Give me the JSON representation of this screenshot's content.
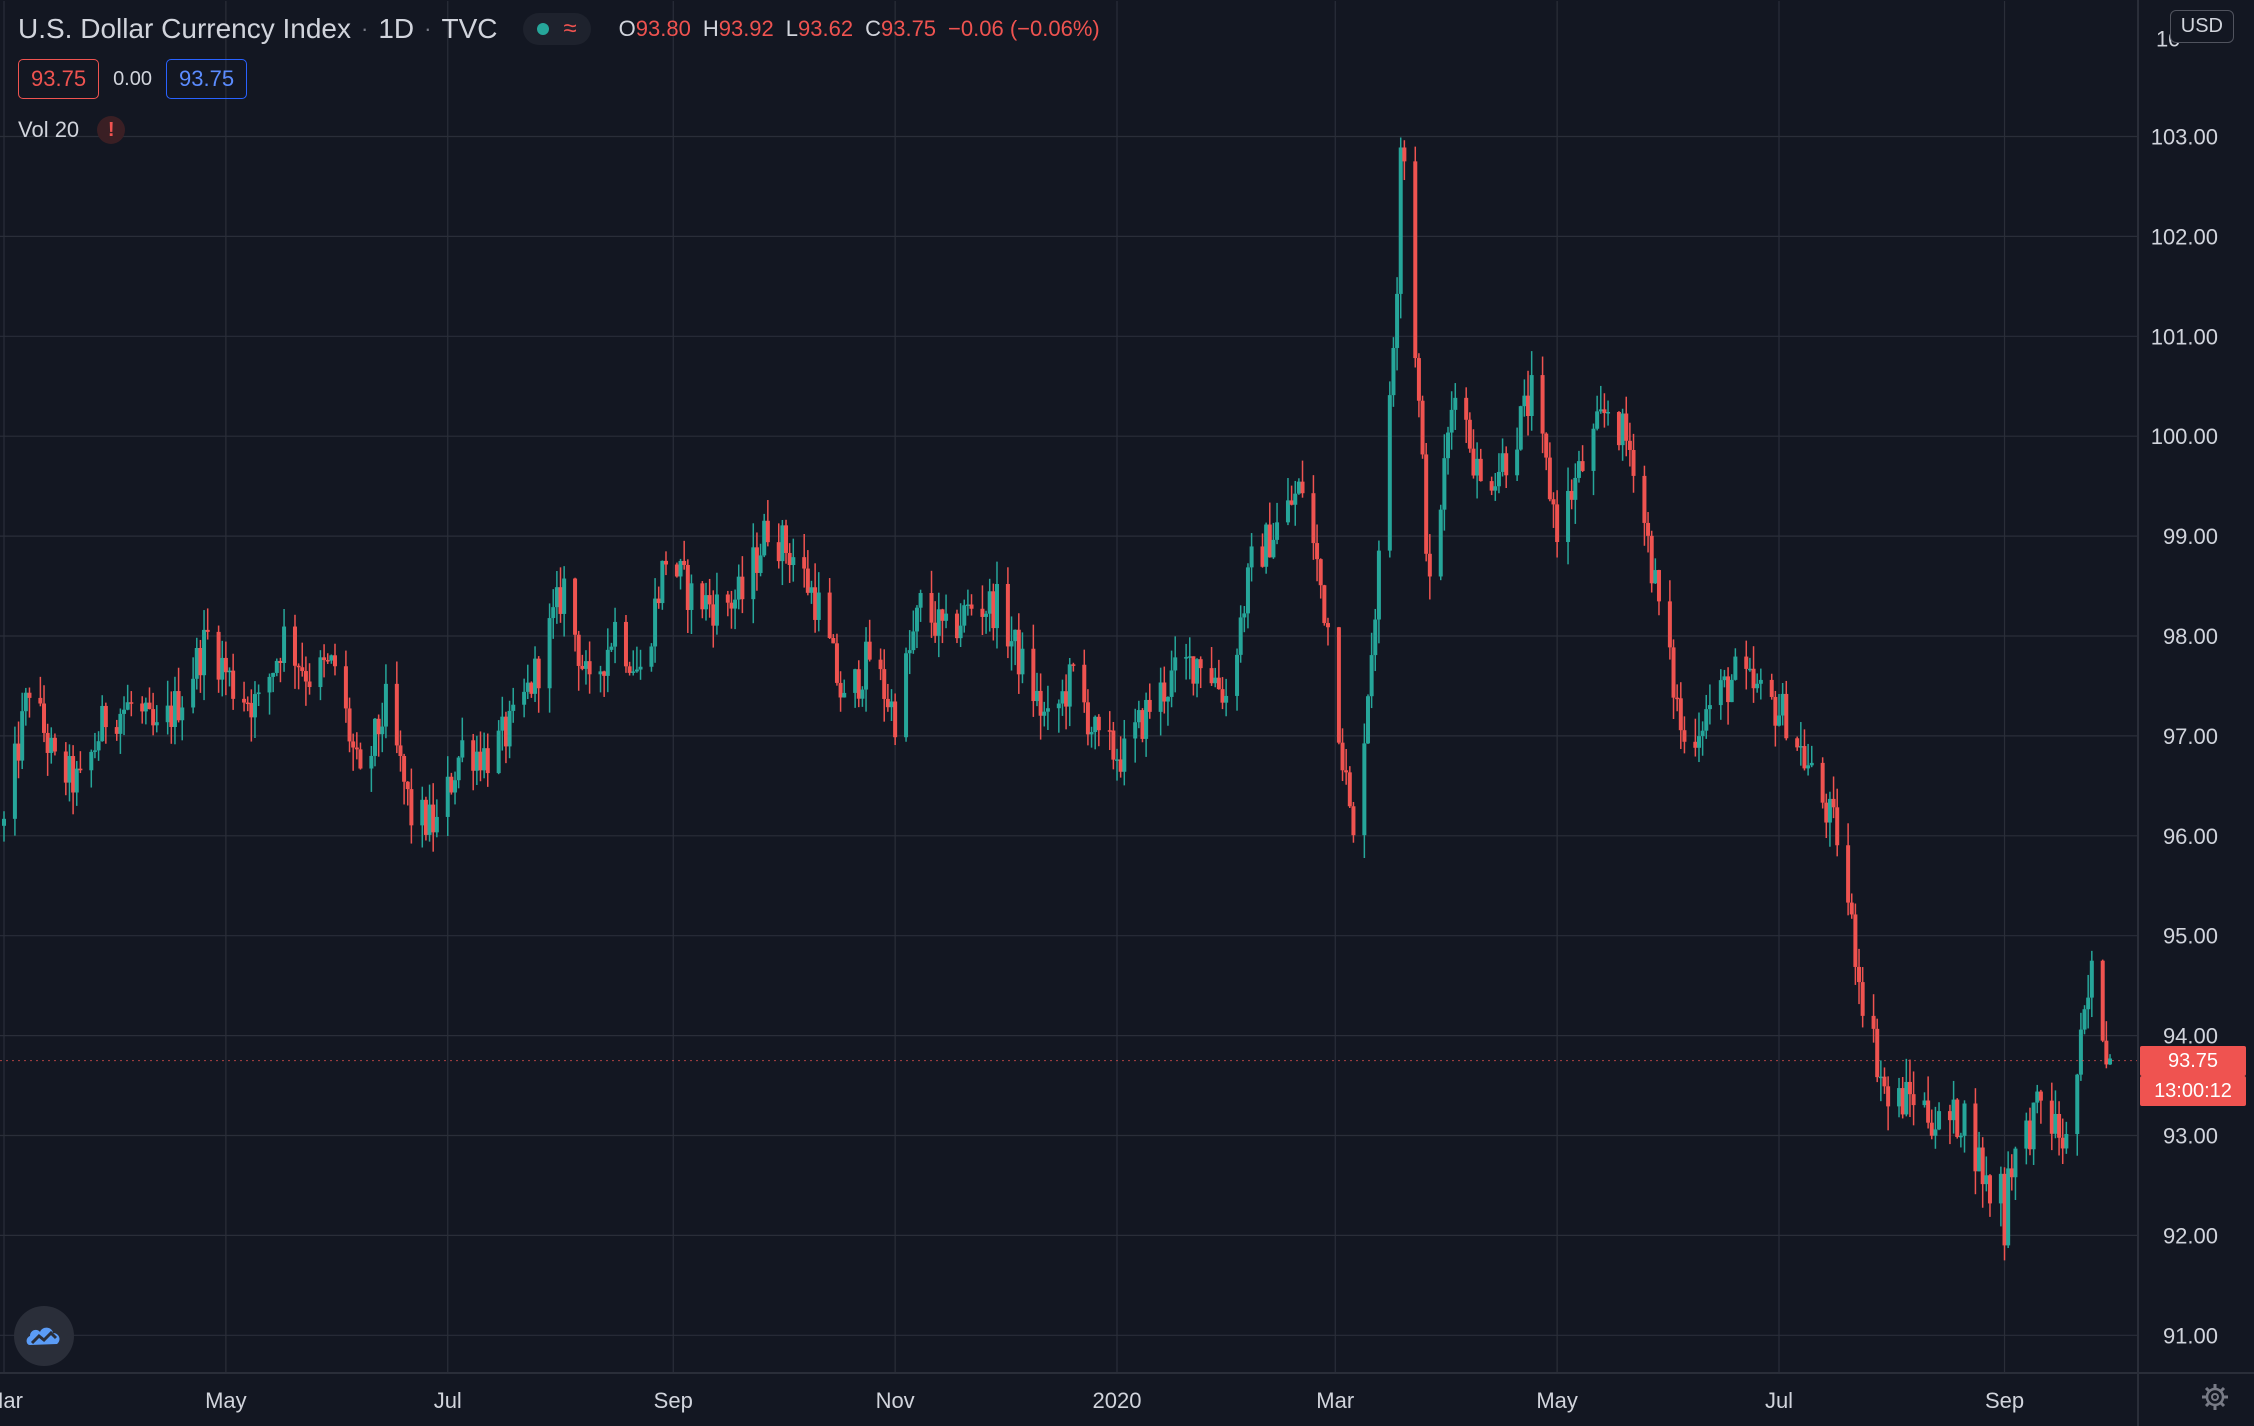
{
  "header": {
    "symbol_title": "U.S. Dollar Currency Index",
    "interval": "1D",
    "exchange": "TVC",
    "ohlc": {
      "o_label": "O",
      "o_value": "93.80",
      "h_label": "H",
      "h_value": "93.92",
      "l_label": "L",
      "l_value": "93.62",
      "c_label": "C",
      "c_value": "93.75",
      "change": "−0.06 (−0.06%)"
    },
    "sell_price": "93.75",
    "spread": "0.00",
    "buy_price": "93.75",
    "volume_indicator": "Vol 20",
    "warning_glyph": "!"
  },
  "currency_button": "USD",
  "price_tags": {
    "last_price": "93.75",
    "countdown": "13:00:12"
  },
  "colors": {
    "background": "#131722",
    "up": "#26a69a",
    "down": "#ef5350",
    "grid": "#2a2e39",
    "text": "#d1d4dc"
  },
  "icons": [
    "tradingview-logo-icon",
    "settings-gear-icon",
    "warning-icon",
    "status-wave-icon"
  ],
  "chart_data": {
    "type": "candlestick",
    "title": "U.S. Dollar Currency Index",
    "ylim": [
      90.6,
      104.3
    ],
    "y_ticks": [
      "91.00",
      "92.00",
      "93.00",
      "94.00",
      "95.00",
      "96.00",
      "97.00",
      "98.00",
      "99.00",
      "100.00",
      "101.00",
      "102.00",
      "103.00"
    ],
    "y_tick_top_partial": "10",
    "x_tick_labels": [
      "Mar",
      "May",
      "Jul",
      "Sep",
      "Nov",
      "2020",
      "Mar",
      "May",
      "Jul",
      "Sep"
    ],
    "x_tick_dates": [
      "2019-03-01",
      "2019-05-01",
      "2019-07-01",
      "2019-09-01",
      "2019-11-01",
      "2020-01-01",
      "2020-03-01",
      "2020-05-01",
      "2020-07-01",
      "2020-09-01"
    ],
    "x_range": [
      "2019-03-01",
      "2020-09-30"
    ],
    "grid": true,
    "last_price": 93.75,
    "close_series": [
      [
        "2019-03-01",
        96.1
      ],
      [
        "2019-03-08",
        97.5
      ],
      [
        "2019-03-15",
        96.7
      ],
      [
        "2019-03-22",
        96.5
      ],
      [
        "2019-03-29",
        97.2
      ],
      [
        "2019-04-05",
        97.3
      ],
      [
        "2019-04-12",
        97.0
      ],
      [
        "2019-04-19",
        97.4
      ],
      [
        "2019-04-26",
        98.0
      ],
      [
        "2019-05-03",
        97.5
      ],
      [
        "2019-05-10",
        97.3
      ],
      [
        "2019-05-17",
        98.0
      ],
      [
        "2019-05-24",
        97.6
      ],
      [
        "2019-05-31",
        97.7
      ],
      [
        "2019-06-07",
        96.5
      ],
      [
        "2019-06-14",
        97.3
      ],
      [
        "2019-06-21",
        96.2
      ],
      [
        "2019-06-28",
        96.1
      ],
      [
        "2019-07-05",
        96.9
      ],
      [
        "2019-07-12",
        96.8
      ],
      [
        "2019-07-19",
        97.1
      ],
      [
        "2019-07-26",
        97.7
      ],
      [
        "2019-08-02",
        98.5
      ],
      [
        "2019-08-09",
        97.4
      ],
      [
        "2019-08-16",
        98.1
      ],
      [
        "2019-08-23",
        97.6
      ],
      [
        "2019-08-30",
        98.8
      ],
      [
        "2019-09-06",
        98.4
      ],
      [
        "2019-09-13",
        98.3
      ],
      [
        "2019-09-20",
        98.4
      ],
      [
        "2019-09-27",
        99.1
      ],
      [
        "2019-10-04",
        98.8
      ],
      [
        "2019-10-11",
        98.3
      ],
      [
        "2019-10-18",
        97.3
      ],
      [
        "2019-10-25",
        97.8
      ],
      [
        "2019-11-01",
        97.2
      ],
      [
        "2019-11-08",
        98.3
      ],
      [
        "2019-11-15",
        98.0
      ],
      [
        "2019-11-22",
        98.3
      ],
      [
        "2019-11-29",
        98.3
      ],
      [
        "2019-12-06",
        97.7
      ],
      [
        "2019-12-13",
        97.1
      ],
      [
        "2019-12-20",
        97.6
      ],
      [
        "2019-12-27",
        96.9
      ],
      [
        "2020-01-03",
        96.8
      ],
      [
        "2020-01-10",
        97.3
      ],
      [
        "2020-01-17",
        97.6
      ],
      [
        "2020-01-24",
        97.8
      ],
      [
        "2020-01-31",
        97.4
      ],
      [
        "2020-02-07",
        98.7
      ],
      [
        "2020-02-14",
        99.1
      ],
      [
        "2020-02-21",
        99.5
      ],
      [
        "2020-02-28",
        98.1
      ],
      [
        "2020-03-06",
        95.9
      ],
      [
        "2020-03-13",
        98.7
      ],
      [
        "2020-03-20",
        102.8
      ],
      [
        "2020-03-27",
        98.4
      ],
      [
        "2020-04-03",
        100.6
      ],
      [
        "2020-04-10",
        99.5
      ],
      [
        "2020-04-17",
        99.8
      ],
      [
        "2020-04-24",
        100.4
      ],
      [
        "2020-05-01",
        99.1
      ],
      [
        "2020-05-08",
        99.7
      ],
      [
        "2020-05-15",
        100.3
      ],
      [
        "2020-05-22",
        99.8
      ],
      [
        "2020-05-29",
        98.3
      ],
      [
        "2020-06-05",
        96.9
      ],
      [
        "2020-06-12",
        97.3
      ],
      [
        "2020-06-19",
        97.6
      ],
      [
        "2020-06-26",
        97.4
      ],
      [
        "2020-07-03",
        97.2
      ],
      [
        "2020-07-10",
        96.6
      ],
      [
        "2020-07-17",
        96.0
      ],
      [
        "2020-07-24",
        94.4
      ],
      [
        "2020-07-31",
        93.3
      ],
      [
        "2020-08-07",
        93.4
      ],
      [
        "2020-08-14",
        93.1
      ],
      [
        "2020-08-21",
        93.2
      ],
      [
        "2020-08-28",
        92.4
      ],
      [
        "2020-09-04",
        92.8
      ],
      [
        "2020-09-11",
        93.3
      ],
      [
        "2020-09-18",
        92.9
      ],
      [
        "2020-09-25",
        94.6
      ],
      [
        "2020-09-30",
        93.75
      ]
    ],
    "notable_points": {
      "high": [
        "2020-03-19",
        102.99
      ],
      "low": [
        "2020-09-01",
        91.75
      ]
    }
  }
}
